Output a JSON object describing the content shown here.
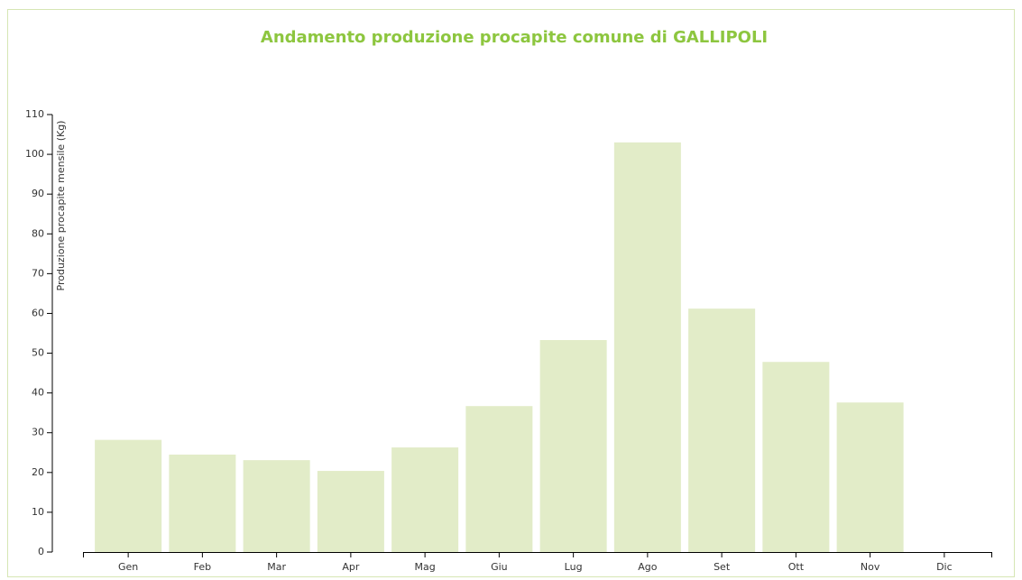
{
  "chart_data": {
    "type": "bar",
    "title": "Andamento produzione procapite comune di GALLIPOLI",
    "y_label": "Produzione procapite mensile (Kg)",
    "categories": [
      "Gen",
      "Feb",
      "Mar",
      "Apr",
      "Mag",
      "Giu",
      "Lug",
      "Ago",
      "Set",
      "Ott",
      "Nov",
      "Dic"
    ],
    "values": [
      28.2,
      24.5,
      23.1,
      20.4,
      26.3,
      36.7,
      53.3,
      103,
      61.2,
      47.8,
      37.6,
      null
    ],
    "color": "#e2ecc8",
    "ylim": [
      0,
      110
    ],
    "yticks": [
      0,
      10,
      20,
      30,
      40,
      50,
      60,
      70,
      80,
      90,
      100,
      110
    ],
    "grid": false
  }
}
